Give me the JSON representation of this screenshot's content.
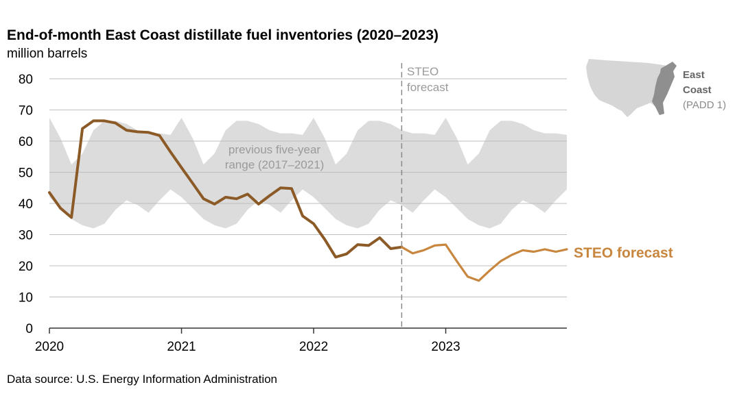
{
  "source": "Data source: U.S. Energy Information Administration",
  "map": {
    "label": "East",
    "label2": "Coast",
    "sublabel": "(PADD 1)"
  },
  "colors": {
    "history": "#8b5a26",
    "forecast": "#c8863e",
    "band": "#dcdcdc",
    "grid": "#bdbdbd",
    "divider": "#8a8a8a"
  },
  "chart_data": {
    "type": "line",
    "title": "End-of-month East Coast distillate fuel inventories (2020–2023)",
    "unit": "million barrels",
    "ylim": [
      0,
      80
    ],
    "yticks": [
      0,
      10,
      20,
      30,
      40,
      50,
      60,
      70,
      80
    ],
    "xlim": [
      "2020-01",
      "2023-12"
    ],
    "xticks": [
      "2020",
      "2021",
      "2022",
      "2023"
    ],
    "grid": true,
    "forecast_start": "2022-09",
    "forecast_note": [
      "STEO",
      "forecast"
    ],
    "range_note": [
      "previous five-year",
      "range (2017–2021)"
    ],
    "forecast_label": "STEO forecast",
    "months": [
      "2020-01",
      "2020-02",
      "2020-03",
      "2020-04",
      "2020-05",
      "2020-06",
      "2020-07",
      "2020-08",
      "2020-09",
      "2020-10",
      "2020-11",
      "2020-12",
      "2021-01",
      "2021-02",
      "2021-03",
      "2021-04",
      "2021-05",
      "2021-06",
      "2021-07",
      "2021-08",
      "2021-09",
      "2021-10",
      "2021-11",
      "2021-12",
      "2022-01",
      "2022-02",
      "2022-03",
      "2022-04",
      "2022-05",
      "2022-06",
      "2022-07",
      "2022-08",
      "2022-09",
      "2022-10",
      "2022-11",
      "2022-12",
      "2023-01",
      "2023-02",
      "2023-03",
      "2023-04",
      "2023-05",
      "2023-06",
      "2023-07",
      "2023-08",
      "2023-09",
      "2023-10",
      "2023-11",
      "2023-12"
    ],
    "range_max": [
      67.5,
      61,
      52.5,
      56,
      63.5,
      66.5,
      66.5,
      65.5,
      63.5,
      62.5,
      62.5,
      62,
      67.5,
      61,
      52.5,
      56,
      63.5,
      66.5,
      66.5,
      65.5,
      63.5,
      62.5,
      62.5,
      62,
      67.5,
      61,
      52.5,
      56,
      63.5,
      66.5,
      66.5,
      65.5,
      63.5,
      62.5,
      62.5,
      62,
      67.5,
      61,
      52.5,
      56,
      63.5,
      66.5,
      66.5,
      65.5,
      63.5,
      62.5,
      62.5,
      62
    ],
    "range_min": [
      42,
      38.5,
      35,
      33,
      32,
      33.5,
      38,
      41,
      39.5,
      37,
      41,
      44.5,
      42,
      38.5,
      35,
      33,
      32,
      33.5,
      38,
      41,
      39.5,
      37,
      41,
      44.5,
      42,
      38.5,
      35,
      33,
      32,
      33.5,
      38,
      41,
      39.5,
      37,
      41,
      44.5,
      42,
      38.5,
      35,
      33,
      32,
      33.5,
      38,
      41,
      39.5,
      37,
      41,
      44.5
    ],
    "series": [
      {
        "segment": "history",
        "x": [
          "2020-01",
          "2020-02",
          "2020-03",
          "2020-04",
          "2020-05",
          "2020-06",
          "2020-07",
          "2020-08",
          "2020-09",
          "2020-10",
          "2020-11",
          "2020-12",
          "2021-01",
          "2021-02",
          "2021-03",
          "2021-04",
          "2021-05",
          "2021-06",
          "2021-07",
          "2021-08",
          "2021-09",
          "2021-10",
          "2021-11",
          "2021-12",
          "2022-01",
          "2022-02",
          "2022-03",
          "2022-04",
          "2022-05",
          "2022-06",
          "2022-07",
          "2022-08",
          "2022-09"
        ],
        "values": [
          43.5,
          38.5,
          35.5,
          64,
          66.5,
          66.5,
          65.8,
          63.5,
          63,
          62.8,
          61.8,
          56.5,
          51.5,
          46.5,
          41.5,
          39.8,
          42,
          41.5,
          43,
          39.8,
          42.5,
          45,
          44.8,
          36,
          33.5,
          28.5,
          22.8,
          23.8,
          26.8,
          26.5,
          29,
          25.5,
          26
        ]
      },
      {
        "segment": "forecast",
        "x": [
          "2022-09",
          "2022-10",
          "2022-11",
          "2022-12",
          "2023-01",
          "2023-02",
          "2023-03",
          "2023-04",
          "2023-05",
          "2023-06",
          "2023-07",
          "2023-08",
          "2023-09",
          "2023-10",
          "2023-11",
          "2023-12"
        ],
        "values": [
          26,
          24,
          25,
          26.5,
          26.8,
          21.5,
          16.5,
          15.2,
          18.5,
          21.5,
          23.5,
          25,
          24.5,
          25.3,
          24.5,
          25.3
        ]
      }
    ]
  }
}
